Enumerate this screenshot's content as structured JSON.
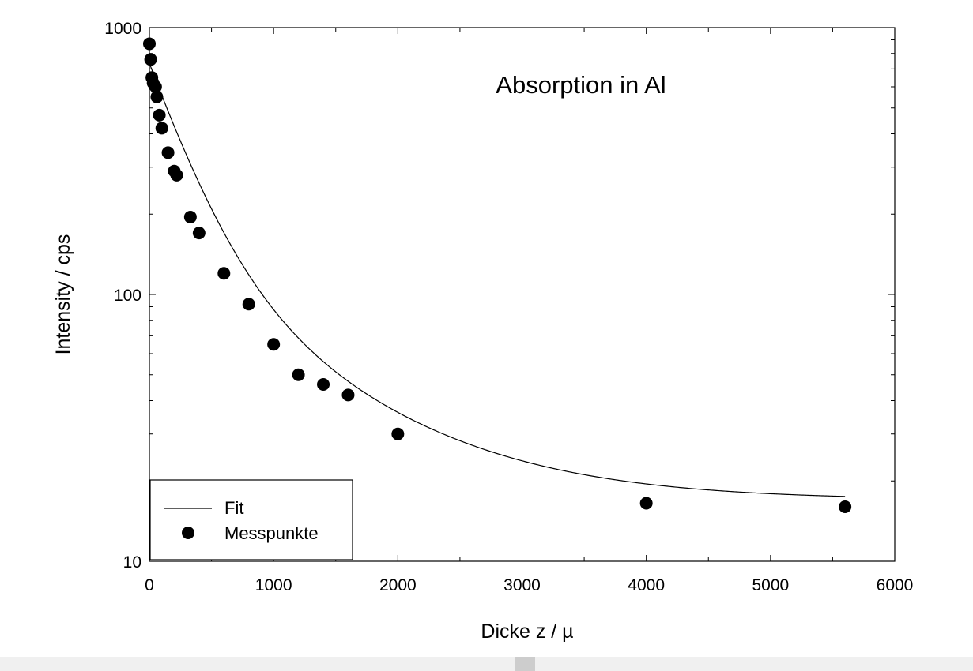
{
  "chart_data": {
    "type": "scatter",
    "title": "Absorption in Al",
    "xlabel": "Dicke z / µ",
    "ylabel": "Intensity /  cps",
    "xlim": [
      0,
      6000
    ],
    "ylim": [
      10,
      1000
    ],
    "y_scale": "log",
    "x_ticks": [
      "0",
      "1000",
      "2000",
      "3000",
      "4000",
      "5000",
      "6000"
    ],
    "y_ticks": [
      "10",
      "100",
      "1000"
    ],
    "grid": false,
    "legend": {
      "placement": "bottom-left",
      "entries": [
        {
          "label": "Fit",
          "style": "line"
        },
        {
          "label": "Messpunkte",
          "style": "marker"
        }
      ]
    },
    "series": [
      {
        "name": "Messpunkte",
        "style": "marker",
        "color": "#000000",
        "points": [
          [
            0,
            870
          ],
          [
            10,
            760
          ],
          [
            20,
            650
          ],
          [
            30,
            620
          ],
          [
            50,
            600
          ],
          [
            60,
            550
          ],
          [
            80,
            470
          ],
          [
            100,
            420
          ],
          [
            150,
            340
          ],
          [
            200,
            290
          ],
          [
            220,
            280
          ],
          [
            330,
            195
          ],
          [
            400,
            170
          ],
          [
            600,
            120
          ],
          [
            800,
            92
          ],
          [
            1000,
            65
          ],
          [
            1200,
            50
          ],
          [
            1400,
            46
          ],
          [
            1600,
            42
          ],
          [
            2000,
            30
          ],
          [
            4000,
            16.5
          ],
          [
            5600,
            16
          ]
        ]
      },
      {
        "name": "Fit",
        "style": "line",
        "color": "#000000",
        "model": "y = 17 + 582*exp(-x/300) + 136*exp(-x/1000)",
        "x_range": [
          0,
          5600
        ]
      }
    ]
  },
  "scrollbar": {
    "orientation": "horizontal"
  }
}
